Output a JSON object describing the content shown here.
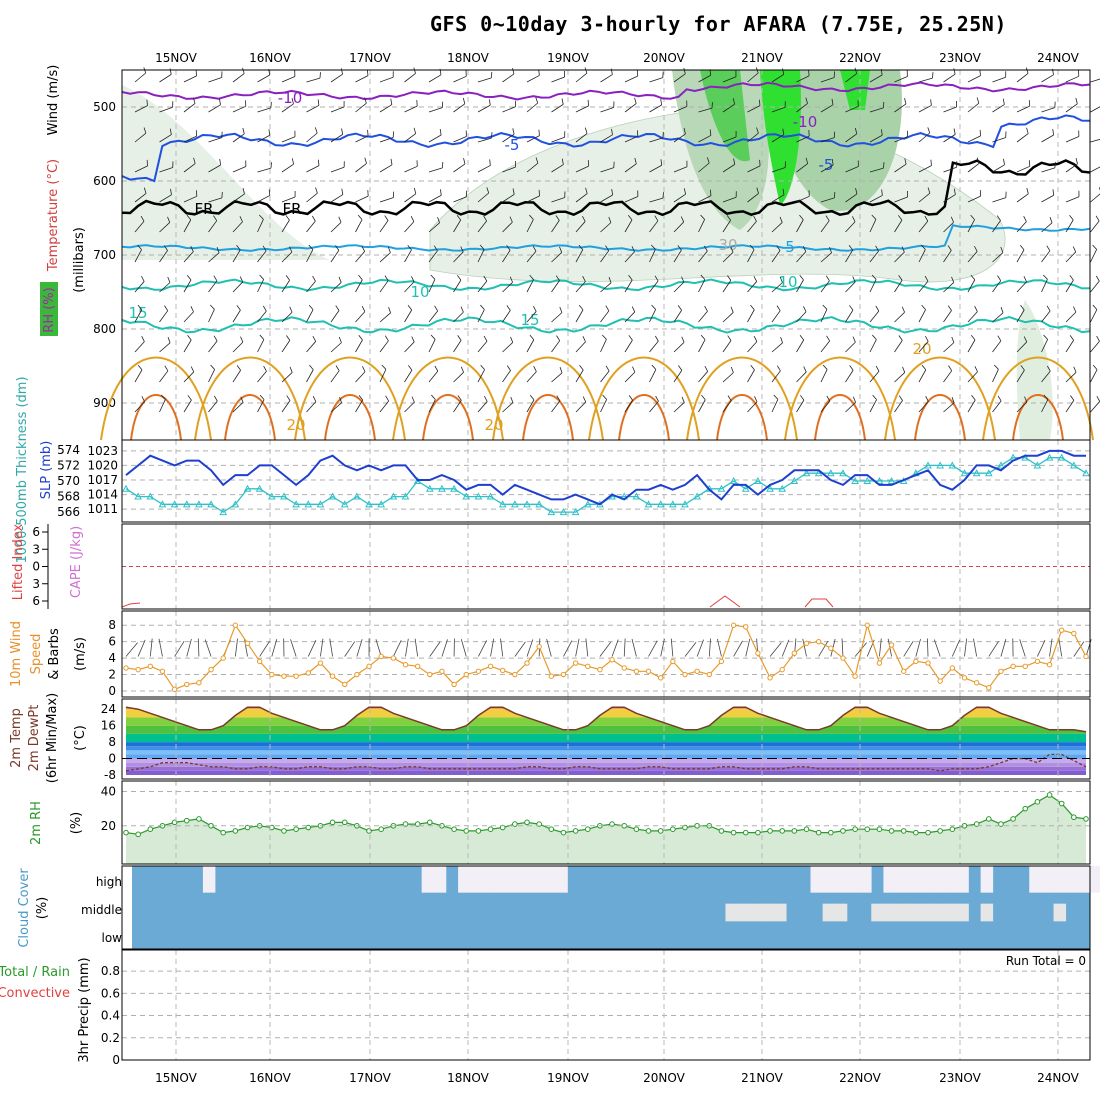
{
  "title": "GFS 0~10day 3-hourly for AFARA (7.75E, 25.25N)",
  "colors": {
    "wind_speed": "#e89a2a",
    "slp": "#1f3fcf",
    "thickness": "#30c0c8",
    "rh_fill": "#d6ead6",
    "rh_line": "#2a9a2a",
    "cloud": "#6aaad4",
    "temp_purple": "#8a20c0",
    "temp_blue": "#2050e0",
    "temp_cyan": "#20a0e0",
    "temp_teal": "#20c0b0",
    "temp_orange": "#e0a020",
    "temp_dark_orange": "#e07020",
    "freezing": "#000000"
  },
  "chart_data": [
    {
      "id": "upper_air",
      "type": "contour",
      "ylabel_parts": [
        "Wind (m/s)",
        "Temperature (°C)",
        "RH (%)"
      ],
      "yunit": "(millibars)",
      "ylim": [
        950,
        450
      ],
      "yticks": [
        500,
        600,
        700,
        800,
        900
      ],
      "dates": [
        "15NOV",
        "16NOV",
        "17NOV",
        "18NOV",
        "19NOV",
        "20NOV",
        "21NOV",
        "22NOV",
        "23NOV",
        "24NOV"
      ],
      "contour_labels": [
        "-10",
        "-10",
        "-5",
        "-5",
        "FR",
        "FR",
        "5",
        "10",
        "10",
        "15",
        "15",
        "20",
        "20",
        "20",
        "30"
      ]
    },
    {
      "id": "slp_thickness",
      "type": "line",
      "ylabel_left": "1000-500mb Thickness (dm)",
      "ylabel_right": "SLP (mb)",
      "left_ticks": [
        "574",
        "572",
        "570",
        "568",
        "566"
      ],
      "right_ticks": [
        "1023",
        "1020",
        "1017",
        "1014",
        "1011"
      ],
      "slp_ylim": [
        1010,
        1024
      ],
      "slp": [
        1018,
        1020,
        1022,
        1021,
        1020,
        1021,
        1021,
        1019,
        1016,
        1018,
        1018,
        1020,
        1020,
        1018,
        1016,
        1018,
        1021,
        1022,
        1020,
        1019,
        1020,
        1019,
        1020,
        1020,
        1017,
        1017,
        1018,
        1017,
        1015,
        1016,
        1016,
        1014,
        1016,
        1015,
        1014,
        1013,
        1013,
        1014,
        1013,
        1012,
        1014,
        1013,
        1015,
        1015,
        1016,
        1015,
        1016,
        1018,
        1015,
        1013,
        1016,
        1016,
        1014,
        1016,
        1017,
        1019,
        1019,
        1019,
        1017,
        1016,
        1018,
        1018,
        1016,
        1016,
        1017,
        1018,
        1019,
        1016,
        1015,
        1017,
        1020,
        1020,
        1019,
        1021,
        1022,
        1022,
        1023,
        1023,
        1022,
        1022
      ],
      "thickness": [
        569,
        568,
        568,
        567,
        567,
        567,
        567,
        567,
        566,
        567,
        569,
        569,
        568,
        568,
        567,
        567,
        567,
        568,
        567,
        568,
        567,
        567,
        568,
        568,
        570,
        569,
        569,
        569,
        568,
        568,
        568,
        567,
        567,
        567,
        567,
        566,
        566,
        566,
        567,
        567,
        568,
        568,
        568,
        567,
        567,
        567,
        567,
        568,
        569,
        569,
        570,
        569,
        570,
        569,
        569,
        570,
        571,
        571,
        571,
        571,
        570,
        570,
        570,
        570,
        570,
        571,
        572,
        572,
        572,
        571,
        571,
        571,
        572,
        573,
        573,
        572,
        573,
        573,
        572,
        571
      ]
    },
    {
      "id": "stability",
      "type": "line",
      "ylabel_left": "Lifted Index",
      "ylabel_right": "CAPE (J/kg)",
      "ticks": [
        "6",
        "3",
        "0",
        "3",
        "6"
      ],
      "ylim": [
        -6,
        6
      ]
    },
    {
      "id": "wind10m",
      "type": "line",
      "ylabel": "10m Wind Speed (m/s) & Barbs",
      "ticks": [
        "8",
        "6",
        "4",
        "2",
        "0"
      ],
      "ylim": [
        0,
        9
      ],
      "speed": [
        2.8,
        2.6,
        3.0,
        2.4,
        0.2,
        0.8,
        1.0,
        2.6,
        4.0,
        8.0,
        5.8,
        3.6,
        2.0,
        1.8,
        1.8,
        2.2,
        3.4,
        1.8,
        0.8,
        2.0,
        3.0,
        4.2,
        4.0,
        3.2,
        3.0,
        2.0,
        2.4,
        0.8,
        2.0,
        2.4,
        3.0,
        2.5,
        2.0,
        3.4,
        5.4,
        1.8,
        2.0,
        3.4,
        3.0,
        2.6,
        3.8,
        2.8,
        2.4,
        2.4,
        1.6,
        3.6,
        2.0,
        2.4,
        2.0,
        3.6,
        8.0,
        7.8,
        4.6,
        1.6,
        2.6,
        4.6,
        5.8,
        6.0,
        5.2,
        4.0,
        1.8,
        8.0,
        3.4,
        5.6,
        2.4,
        3.6,
        3.4,
        1.2,
        2.8,
        1.6,
        1.0,
        0.4,
        2.4,
        3.0,
        3.0,
        3.6,
        3.2,
        7.4,
        7.0,
        4.2
      ]
    },
    {
      "id": "temperature2m",
      "type": "area",
      "ylabel": "2m Temp 2m DewPt (6hr Min/Max) (°C)",
      "ticks": [
        "24",
        "16",
        "8",
        "0",
        "-8"
      ],
      "ylim": [
        -8,
        28
      ],
      "temp": [
        25,
        24,
        22,
        20,
        18,
        16,
        14,
        14,
        16,
        21,
        25,
        25,
        22,
        20,
        18,
        16,
        14,
        14,
        16,
        21,
        25,
        25,
        22,
        20,
        18,
        16,
        14,
        14,
        16,
        21,
        25,
        25,
        22,
        20,
        18,
        16,
        14,
        14,
        16,
        21,
        25,
        25,
        22,
        20,
        18,
        16,
        14,
        14,
        16,
        21,
        25,
        25,
        22,
        20,
        18,
        16,
        14,
        14,
        16,
        21,
        25,
        25,
        22,
        20,
        18,
        16,
        14,
        14,
        16,
        21,
        25,
        25,
        22,
        20,
        18,
        16,
        14,
        14,
        14,
        13
      ],
      "dewpoint": [
        -6,
        -5,
        -4,
        -2,
        -2,
        -2,
        -3,
        -4,
        -4,
        -5,
        -5,
        -4,
        -4,
        -5,
        -5,
        -4,
        -4,
        -5,
        -5,
        -4,
        -4,
        -5,
        -5,
        -4,
        -4,
        -5,
        -5,
        -5,
        -5,
        -5,
        -5,
        -5,
        -5,
        -4,
        -4,
        -5,
        -5,
        -4,
        -4,
        -5,
        -5,
        -5,
        -5,
        -4,
        -4,
        -5,
        -5,
        -5,
        -5,
        -4,
        -4,
        -5,
        -5,
        -5,
        -5,
        -4,
        -4,
        -5,
        -5,
        -5,
        -5,
        -5,
        -5,
        -5,
        -5,
        -5,
        -5,
        -6,
        -5,
        -5,
        -5,
        -4,
        -2,
        0,
        0,
        -2,
        2,
        2,
        -1,
        -4
      ]
    },
    {
      "id": "rh2m",
      "type": "area",
      "ylabel": "2m RH (%)",
      "ticks": [
        "40",
        "20"
      ],
      "ylim": [
        0,
        45
      ],
      "rh": [
        16,
        15,
        18,
        20,
        22,
        23,
        24,
        20,
        16,
        17,
        19,
        20,
        19,
        17,
        18,
        19,
        20,
        22,
        22,
        20,
        17,
        18,
        20,
        21,
        21,
        22,
        20,
        18,
        17,
        17,
        18,
        19,
        21,
        22,
        21,
        18,
        16,
        17,
        18,
        20,
        21,
        20,
        18,
        17,
        17,
        18,
        19,
        20,
        20,
        17,
        16,
        16,
        16,
        17,
        17,
        17,
        18,
        16,
        16,
        17,
        18,
        18,
        18,
        17,
        17,
        16,
        16,
        17,
        18,
        20,
        21,
        24,
        21,
        24,
        30,
        34,
        38,
        33,
        25,
        24
      ]
    },
    {
      "id": "cloud_cover",
      "type": "heatmap",
      "ylabel": "Cloud Cover (%)",
      "levels": [
        "high",
        "middle",
        "low"
      ],
      "high_clear": [
        0,
        0,
        0,
        0,
        0,
        0,
        1,
        0,
        0,
        0,
        0,
        0,
        0,
        0,
        0,
        0,
        0,
        0,
        0,
        0,
        0,
        0,
        0,
        0,
        1,
        1,
        0,
        1,
        1,
        1,
        1,
        1,
        1,
        1,
        1,
        1,
        0,
        0,
        0,
        0,
        0,
        0,
        0,
        0,
        0,
        0,
        0,
        0,
        0,
        0,
        0,
        0,
        0,
        0,
        0,
        0,
        1,
        1,
        1,
        1,
        1,
        0,
        1,
        1,
        1,
        1,
        1,
        1,
        1,
        0,
        1,
        0,
        0,
        0,
        1,
        1,
        1,
        1,
        1,
        1
      ],
      "middle_clear": [
        0,
        0,
        0,
        0,
        0,
        0,
        0,
        0,
        0,
        0,
        0,
        0,
        0,
        0,
        0,
        0,
        0,
        0,
        0,
        0,
        0,
        0,
        0,
        0,
        0,
        0,
        0,
        0,
        0,
        0,
        0,
        0,
        0,
        0,
        0,
        0,
        0,
        0,
        0,
        0,
        0,
        0,
        0,
        0,
        0,
        0,
        0,
        0,
        0,
        1,
        1,
        1,
        1,
        1,
        0,
        0,
        0,
        1,
        1,
        0,
        0,
        1,
        1,
        1,
        1,
        1,
        1,
        1,
        1,
        0,
        1,
        0,
        0,
        0,
        0,
        0,
        1,
        0,
        0,
        0
      ]
    },
    {
      "id": "precip",
      "type": "bar",
      "ylabel_left": "Total / Rain",
      "ylabel_left2": "Convective",
      "ylabel_right": "3hr Precip (mm)",
      "ticks": [
        "0.8",
        "0.6",
        "0.4",
        "0.2",
        "0"
      ],
      "ylim": [
        0,
        0.9
      ],
      "run_total": "Run Total = 0",
      "values": []
    }
  ]
}
